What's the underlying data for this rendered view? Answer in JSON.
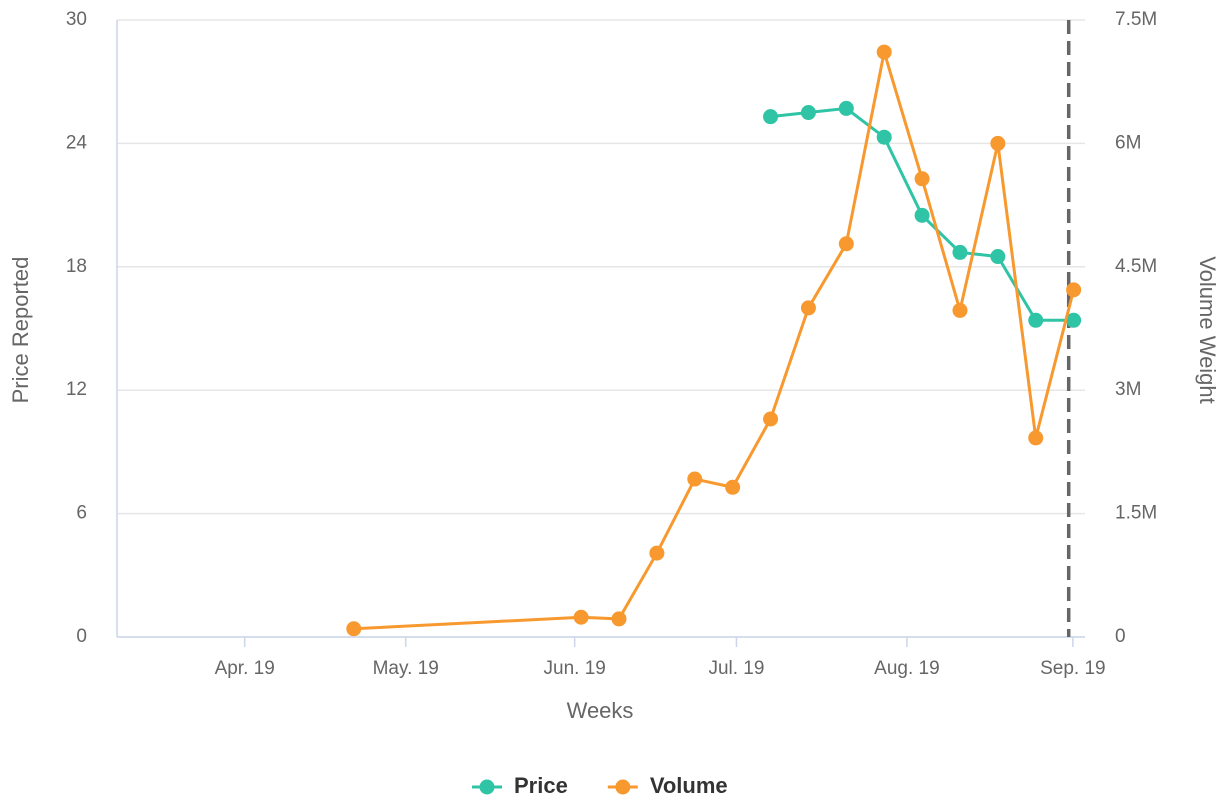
{
  "chart_data": {
    "type": "line",
    "x_label": "Weeks",
    "y_label": "Price Reported",
    "y2_label": "Volume Weight",
    "xlim": [
      -6.25,
      19.3
    ],
    "xticks": [
      {
        "value": -2.88,
        "label": "Apr. 19"
      },
      {
        "value": 1.37,
        "label": "May. 19"
      },
      {
        "value": 5.83,
        "label": "Jun. 19"
      },
      {
        "value": 10.1,
        "label": "Jul. 19"
      },
      {
        "value": 14.6,
        "label": "Aug. 19"
      },
      {
        "value": 18.98,
        "label": "Sep. 19"
      }
    ],
    "ylim": [
      0,
      30
    ],
    "yticks": [
      0,
      6,
      12,
      18,
      24,
      30
    ],
    "y2lim": [
      0,
      7500000
    ],
    "y2ticks": [
      0,
      {
        "value": 1500000,
        "label": "1.5M"
      },
      {
        "value": 3000000,
        "label": "3M"
      },
      {
        "value": 4500000,
        "label": "4.5M"
      },
      {
        "value": 6000000,
        "label": "6M"
      },
      {
        "value": 7500000,
        "label": "7.5M"
      }
    ],
    "grid": true,
    "marker_line": {
      "x": 18.87,
      "color": "#666666"
    },
    "legend": "bottom",
    "series": [
      {
        "name": "Price",
        "color": "#2ec4a5",
        "axis": "y",
        "x": [
          11,
          12,
          13,
          14,
          15,
          16,
          17,
          18,
          19
        ],
        "values": [
          25.3,
          25.5,
          25.7,
          24.3,
          20.5,
          18.7,
          18.5,
          15.4,
          15.4
        ]
      },
      {
        "name": "Volume",
        "color": "#f7992f",
        "axis": "y2",
        "x": [
          0,
          6,
          7,
          8,
          9,
          10,
          11,
          12,
          13,
          14,
          15,
          16,
          17,
          18,
          19
        ],
        "values": [
          100000,
          240000,
          220000,
          1020000,
          1920000,
          1820000,
          2650000,
          4000000,
          4780000,
          7110000,
          5570000,
          3970000,
          6000000,
          2420000,
          4220000
        ]
      }
    ]
  }
}
